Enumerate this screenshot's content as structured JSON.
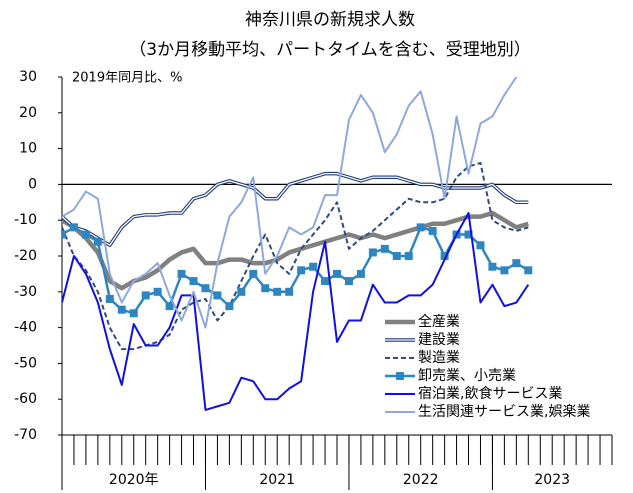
{
  "chart_data": {
    "type": "line",
    "title": "神奈川県の新規求人数",
    "subtitle": "（3か月移動平均、パートタイムを含む、受理地別）",
    "annotation": "2019年同月比、%",
    "categories": [
      null,
      null,
      null,
      null,
      null,
      null,
      null,
      null,
      null,
      null,
      null,
      null,
      null,
      null,
      null,
      null,
      null,
      null,
      null,
      null,
      null,
      null,
      null,
      null,
      null,
      null,
      null,
      null,
      null,
      null,
      null,
      null,
      null,
      null,
      null,
      null,
      null,
      null,
      null,
      null,
      null,
      null,
      null,
      null,
      null,
      null
    ],
    "x_group_labels": [
      "2020年",
      "2021",
      "2022",
      "2023"
    ],
    "ylim": [
      -70,
      30
    ],
    "yticks": [
      30,
      20,
      10,
      0,
      -10,
      -20,
      -30,
      -40,
      -50,
      -60,
      -70
    ],
    "legend": "lower right",
    "series": [
      {
        "name": "全産業",
        "color": "#808080",
        "style": "thick",
        "values": [
          -10,
          -12,
          -15,
          -19,
          -27,
          -29,
          -27,
          -26,
          -24,
          -21,
          -19,
          -18,
          -22,
          -22,
          -21,
          -21,
          -22,
          -22,
          -21,
          -19,
          -18,
          -17,
          -16,
          -15,
          -14,
          -15,
          -14,
          -15,
          -14,
          -13,
          -12,
          -11,
          -11,
          -10,
          -9,
          -9,
          -8,
          -10,
          -12,
          -11,
          null,
          null,
          null,
          null,
          null,
          null
        ]
      },
      {
        "name": "建設業",
        "color": "#1f3a7a",
        "style": "double",
        "values": [
          -9,
          -12,
          -13,
          -15,
          -17,
          -12,
          -9,
          -8.5,
          -8.5,
          -8,
          -8,
          -4,
          -3,
          0,
          1,
          0,
          -1,
          -4,
          -4,
          0,
          1,
          2,
          3,
          3,
          2,
          1,
          2,
          2,
          2,
          1,
          0,
          0,
          -1,
          -1,
          -1,
          -1,
          0,
          -3,
          -5,
          -5,
          null,
          null,
          null,
          null,
          null,
          null
        ]
      },
      {
        "name": "製造業",
        "color": "#2f4a80",
        "style": "dashed",
        "values": [
          -12,
          -20,
          -24,
          -30,
          -40,
          -46,
          -46,
          -45,
          -44,
          -42,
          -35,
          -33,
          -32,
          -38,
          -34,
          -27,
          -20,
          -14,
          -22,
          -25,
          -18,
          -14,
          -10,
          -5,
          -18,
          -15,
          -13,
          -10,
          -7,
          -4,
          -5,
          -5,
          -4,
          2,
          5,
          6,
          -10,
          -12,
          -13,
          -12,
          null,
          null,
          null,
          null,
          null,
          null
        ]
      },
      {
        "name": "卸売業、小売業",
        "color": "#2e86c1",
        "style": "markers",
        "values": [
          -14,
          -12,
          -14,
          -16,
          -32,
          -35,
          -36,
          -31,
          -30,
          -34,
          -25,
          -27,
          -29,
          -31,
          -34,
          -30,
          -25,
          -29,
          -30,
          -30,
          -24,
          -23,
          -27,
          -25,
          -27,
          -25,
          -19,
          -18,
          -20,
          -20,
          -12,
          -13,
          -20,
          -14,
          -14,
          -17,
          -23,
          -24,
          -22,
          -24,
          null,
          null,
          null,
          null,
          null,
          null
        ]
      },
      {
        "name": "宿泊業,飲食サービス業",
        "color": "#1010e0",
        "style": "solid",
        "values": [
          -33,
          -20,
          -25,
          -33,
          -46,
          -56,
          -39,
          -45,
          -45,
          -40,
          -31,
          -31,
          -63,
          -62,
          -61,
          -54,
          -55,
          -60,
          -60,
          -57,
          -55,
          -30,
          -16,
          -44,
          -38,
          -38,
          -28,
          -33,
          -33,
          -31,
          -31,
          -28,
          -21,
          -14,
          -8,
          -33,
          -28,
          -34,
          -33,
          -28,
          null,
          null,
          null,
          null,
          null,
          null
        ]
      },
      {
        "name": "生活関連サービス業,娯楽業",
        "color": "#8fa8dc",
        "style": "solid",
        "values": [
          -9,
          -7,
          -2,
          -4,
          -25,
          -33,
          -27,
          -25,
          -22,
          -31,
          -38,
          -30,
          -40,
          -22,
          -9,
          -5,
          2,
          -25,
          -20,
          -12,
          -14,
          -12,
          -3,
          -3,
          18,
          25,
          20,
          9,
          14,
          22,
          26,
          14,
          -4,
          19,
          3,
          17,
          19,
          25,
          30,
          33,
          null,
          null,
          null,
          null,
          null,
          null
        ]
      }
    ]
  }
}
